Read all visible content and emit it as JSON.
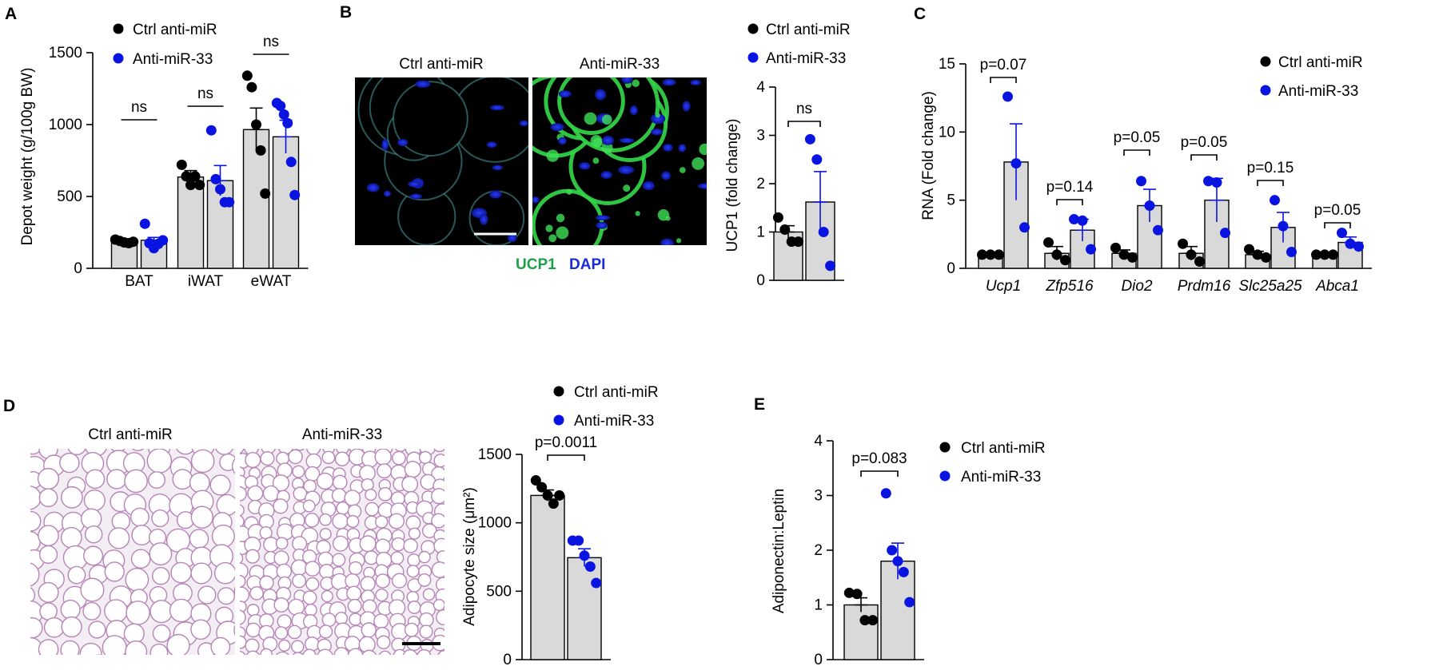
{
  "colors": {
    "ctrl": "#000000",
    "anti": "#0a14e0",
    "bar_fill": "#d9d9d9",
    "ucp1_label": "#1f9e4a",
    "dapi_label": "#1a2bd8",
    "micro_bg": "#000000",
    "he_bg": "#f2eef3"
  },
  "legend": {
    "ctrl": "Ctrl anti-miR",
    "anti": "Anti-miR-33"
  },
  "panels": {
    "A": {
      "letter": "A",
      "chart_data": {
        "type": "bar",
        "ylabel": "Depot weight (g/100g BW)",
        "ylim": [
          0,
          1500
        ],
        "yticks": [
          0,
          500,
          1000,
          1500
        ],
        "categories": [
          "BAT",
          "iWAT",
          "eWAT"
        ],
        "legend_position": "top",
        "series": [
          {
            "name": "Ctrl anti-miR",
            "means": [
              185,
              635,
              965
            ],
            "sems": [
              15,
              45,
              150
            ],
            "points": [
              [
                200,
                190,
                180,
                175,
                185
              ],
              [
                720,
                640,
                580,
                640,
                580
              ],
              [
                1340,
                1260,
                1000,
                820,
                520
              ]
            ]
          },
          {
            "name": "Anti-miR-33",
            "means": [
              195,
              610,
              915
            ],
            "sems": [
              20,
              105,
              115
            ],
            "points": [
              [
                310,
                175,
                140,
                170,
                195
              ],
              [
                960,
                620,
                550,
                460,
                460
              ],
              [
                1150,
                1130,
                1070,
                1010,
                740,
                510
              ]
            ]
          }
        ],
        "annotations": [
          "ns",
          "ns",
          "ns"
        ]
      }
    },
    "B": {
      "letter": "B",
      "image_labels": [
        "Ctrl anti-miR",
        "Anti-miR-33"
      ],
      "stain_ucp1": "UCP1",
      "stain_dapi": "DAPI",
      "chart_data": {
        "type": "bar",
        "ylabel": "UCP1 (fold change)",
        "ylim": [
          0,
          4
        ],
        "yticks": [
          0,
          1,
          2,
          3,
          4
        ],
        "categories": [
          ""
        ],
        "legend_position": "top-right",
        "series": [
          {
            "name": "Ctrl anti-miR",
            "means": [
              1.0
            ],
            "sems": [
              0.13
            ],
            "points": [
              [
                1.3,
                1.05,
                0.8,
                0.8
              ]
            ]
          },
          {
            "name": "Anti-miR-33",
            "means": [
              1.62
            ],
            "sems": [
              0.63
            ],
            "points": [
              [
                2.92,
                2.5,
                1.0,
                0.3
              ]
            ]
          }
        ],
        "annotations": [
          "ns"
        ]
      }
    },
    "C": {
      "letter": "C",
      "chart_data": {
        "type": "bar",
        "ylabel": "RNA (Fold change)",
        "ylim": [
          0,
          15
        ],
        "yticks": [
          0,
          5,
          10,
          15
        ],
        "categories": [
          "Ucp1",
          "Zfp516",
          "Dio2",
          "Prdm16",
          "Slc25a25",
          "Abca1"
        ],
        "legend_position": "top-right",
        "series": [
          {
            "name": "Ctrl anti-miR",
            "means": [
              1.0,
              1.1,
              1.1,
              1.1,
              1.0,
              1.0
            ],
            "sems": [
              0.1,
              0.5,
              0.25,
              0.5,
              0.25,
              0.1
            ],
            "points": [
              [
                1.0,
                1.0,
                1.0
              ],
              [
                1.9,
                1.0,
                0.6
              ],
              [
                1.5,
                1.0,
                0.8
              ],
              [
                1.8,
                1.0,
                0.5
              ],
              [
                1.4,
                1.0,
                0.8
              ],
              [
                1.0,
                1.0,
                1.0
              ]
            ]
          },
          {
            "name": "Anti-miR-33",
            "means": [
              7.8,
              2.8,
              4.6,
              5.0,
              3.0,
              1.9
            ],
            "sems": [
              2.8,
              0.8,
              1.2,
              1.6,
              1.1,
              0.4
            ],
            "points": [
              [
                12.6,
                7.7,
                3.0
              ],
              [
                3.6,
                3.5,
                1.4
              ],
              [
                6.4,
                4.6,
                2.8
              ],
              [
                6.4,
                6.3,
                2.6
              ],
              [
                5.0,
                3.1,
                1.2
              ],
              [
                2.6,
                1.8,
                1.6
              ]
            ]
          }
        ],
        "annotations": [
          "p=0.07",
          "p=0.14",
          "p=0.05",
          "p=0.05",
          "p=0.15",
          "p=0.05"
        ]
      }
    },
    "D": {
      "letter": "D",
      "image_labels": [
        "Ctrl anti-miR",
        "Anti-miR-33"
      ],
      "chart_data": {
        "type": "bar",
        "ylabel": "Adipocyte size (μm²)",
        "ylim": [
          0,
          1500
        ],
        "yticks": [
          0,
          500,
          1000,
          1500
        ],
        "categories": [
          ""
        ],
        "legend_position": "top-right",
        "series": [
          {
            "name": "Ctrl anti-miR",
            "means": [
              1200
            ],
            "sems": [
              40
            ],
            "points": [
              [
                1310,
                1260,
                1200,
                1140,
                1200
              ]
            ]
          },
          {
            "name": "Anti-miR-33",
            "means": [
              745
            ],
            "sems": [
              65
            ],
            "points": [
              [
                870,
                870,
                760,
                680,
                560
              ]
            ]
          }
        ],
        "annotations": [
          "p=0.0011"
        ]
      }
    },
    "E": {
      "letter": "E",
      "chart_data": {
        "type": "bar",
        "ylabel": "Adiponectin:Leptin",
        "ylim": [
          0,
          4
        ],
        "yticks": [
          0,
          1,
          2,
          3,
          4
        ],
        "categories": [
          ""
        ],
        "legend_position": "right",
        "series": [
          {
            "name": "Ctrl anti-miR",
            "means": [
              1.0
            ],
            "sems": [
              0.13
            ],
            "points": [
              [
                1.22,
                1.2,
                0.72,
                0.72
              ]
            ]
          },
          {
            "name": "Anti-miR-33",
            "means": [
              1.8
            ],
            "sems": [
              0.33
            ],
            "points": [
              [
                3.04,
                2.0,
                1.8,
                1.6,
                1.05
              ]
            ]
          }
        ],
        "annotations": [
          "p=0.083"
        ]
      }
    }
  }
}
